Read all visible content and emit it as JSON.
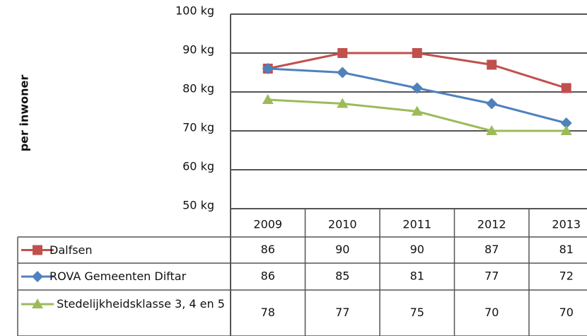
{
  "chart_data": {
    "type": "line",
    "ylabel": "per inwoner",
    "categories": [
      "2009",
      "2010",
      "2011",
      "2012",
      "2013"
    ],
    "series": [
      {
        "name": "Dalfsen",
        "color": "#c0504d",
        "marker": "square",
        "values": [
          86,
          90,
          90,
          87,
          81
        ]
      },
      {
        "name": "ROVA Gemeenten Diftar",
        "color": "#4f81bd",
        "marker": "diamond",
        "values": [
          86,
          85,
          81,
          77,
          72
        ]
      },
      {
        "name": "Stedelijkheidsklasse 3, 4 en 5",
        "color": "#9bbb59",
        "marker": "triangle",
        "values": [
          78,
          77,
          75,
          70,
          70
        ]
      }
    ],
    "ylim": [
      50,
      100
    ],
    "yticks": [
      {
        "value": 50,
        "label": "50 kg"
      },
      {
        "value": 60,
        "label": "60 kg"
      },
      {
        "value": 70,
        "label": "70 kg"
      },
      {
        "value": 80,
        "label": "80 kg"
      },
      {
        "value": 90,
        "label": "90 kg"
      },
      {
        "value": 100,
        "label": "100 kg"
      }
    ],
    "grid": true,
    "data_table": true
  }
}
